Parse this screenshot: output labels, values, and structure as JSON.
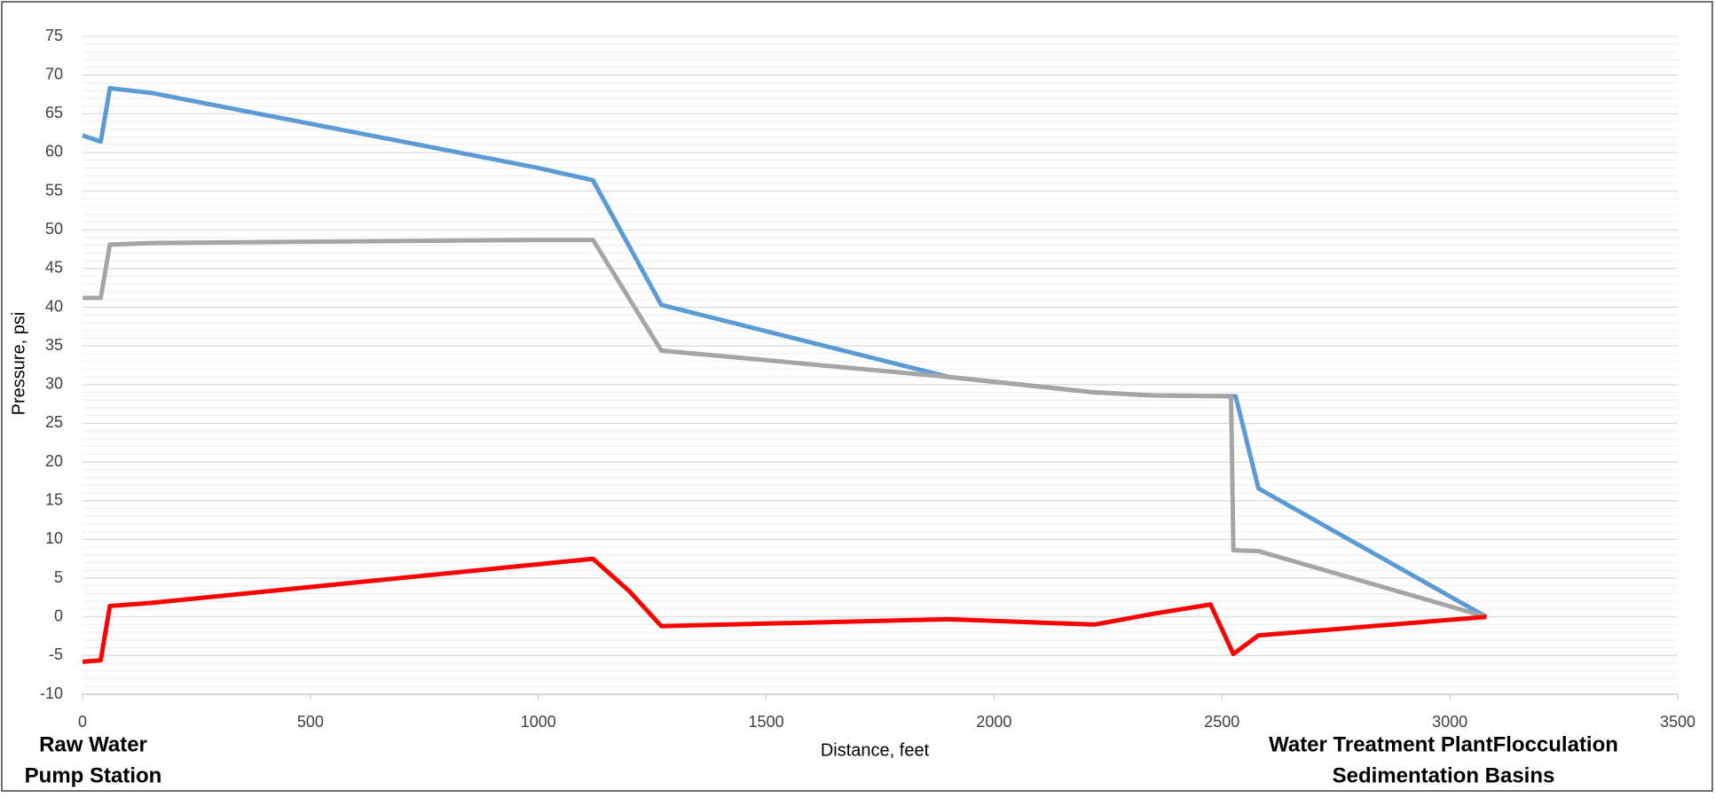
{
  "chart_data": {
    "type": "line",
    "x_label": "Distance, feet",
    "y_label": "Pressure, psi",
    "annotations": [
      [
        "Raw Water",
        "Pump Station"
      ],
      [
        "Water Treatment PlantFlocculation",
        "Sedimentation Basins"
      ]
    ],
    "xlim": [
      0,
      3500
    ],
    "xticks": [
      0,
      500,
      1000,
      1500,
      2000,
      2500,
      3000,
      3500
    ],
    "ylim": [
      -10,
      75
    ],
    "yticks": [
      -10,
      -5,
      0,
      5,
      10,
      15,
      20,
      25,
      30,
      35,
      40,
      45,
      50,
      55,
      60,
      65,
      70,
      75
    ],
    "grid": true,
    "minor_grid": true,
    "series": [
      {
        "color": "#5b9bd5",
        "x": [
          0,
          40,
          60,
          150,
          1000,
          1120,
          1270,
          1900,
          2220,
          2350,
          2530,
          2580,
          3080
        ],
        "values": [
          62.2,
          61.4,
          68.3,
          67.7,
          58,
          56.4,
          40.3,
          31,
          29,
          28.6,
          28.5,
          16.6,
          0
        ]
      },
      {
        "color": "#a5a5a5",
        "x": [
          0,
          40,
          60,
          150,
          1000,
          1120,
          1270,
          1900,
          2220,
          2350,
          2520,
          2525,
          2580,
          3080
        ],
        "values": [
          41.2,
          41.2,
          48.1,
          48.3,
          48.7,
          48.7,
          34.4,
          31,
          29,
          28.6,
          28.5,
          8.6,
          8.5,
          0
        ]
      },
      {
        "color": "#ff0000",
        "x": [
          0,
          40,
          60,
          150,
          1000,
          1120,
          1200,
          1270,
          1900,
          2220,
          2350,
          2475,
          2525,
          2580,
          3080
        ],
        "values": [
          -5.8,
          -5.6,
          1.4,
          1.8,
          6.8,
          7.5,
          3.3,
          -1.2,
          -0.3,
          -1,
          0.4,
          1.6,
          -4.8,
          -2.4,
          0
        ]
      }
    ]
  }
}
